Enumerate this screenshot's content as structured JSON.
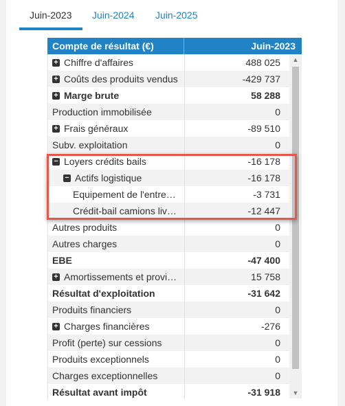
{
  "tabs": [
    {
      "label": "Juin-2023",
      "active": true
    },
    {
      "label": "Juin-2024",
      "active": false
    },
    {
      "label": "Juin-2025",
      "active": false
    }
  ],
  "table": {
    "header": {
      "label": "Compte de résultat (€)",
      "column": "Juin-2023"
    },
    "rows": [
      {
        "label": "Chiffre d'affaires",
        "value": "488 025",
        "toggle": "plus",
        "indent": 0,
        "bold": false
      },
      {
        "label": "Coûts des produits vendus",
        "value": "-429 737",
        "toggle": "plus",
        "indent": 0,
        "bold": false
      },
      {
        "label": "Marge brute",
        "value": "58 288",
        "toggle": "plus",
        "indent": 0,
        "bold": true
      },
      {
        "label": "Production immobilisée",
        "value": "0",
        "toggle": "",
        "indent": 0,
        "bold": false
      },
      {
        "label": "Frais généraux",
        "value": "-89 510",
        "toggle": "plus",
        "indent": 0,
        "bold": false
      },
      {
        "label": "Subv. exploitation",
        "value": "0",
        "toggle": "",
        "indent": 0,
        "bold": false
      },
      {
        "label": "Loyers crédits bails",
        "value": "-16 178",
        "toggle": "minus",
        "indent": 0,
        "bold": false
      },
      {
        "label": "Actifs logistique",
        "value": "-16 178",
        "toggle": "minus",
        "indent": 1,
        "bold": false
      },
      {
        "label": "Equipement de l'entre…",
        "value": "-3 731",
        "toggle": "",
        "indent": 2,
        "bold": false
      },
      {
        "label": "Crédit-bail camions liv…",
        "value": "-12 447",
        "toggle": "",
        "indent": 2,
        "bold": false
      },
      {
        "label": "Autres produits",
        "value": "0",
        "toggle": "",
        "indent": 0,
        "bold": false
      },
      {
        "label": "Autres charges",
        "value": "0",
        "toggle": "",
        "indent": 0,
        "bold": false
      },
      {
        "label": "EBE",
        "value": "-47 400",
        "toggle": "",
        "indent": 0,
        "bold": true
      },
      {
        "label": "Amortissements et provi…",
        "value": "15 758",
        "toggle": "plus",
        "indent": 0,
        "bold": false
      },
      {
        "label": "Résultat d'exploitation",
        "value": "-31 642",
        "toggle": "",
        "indent": 0,
        "bold": true
      },
      {
        "label": "Produits financiers",
        "value": "0",
        "toggle": "",
        "indent": 0,
        "bold": false
      },
      {
        "label": "Charges financières",
        "value": "-276",
        "toggle": "plus",
        "indent": 0,
        "bold": false
      },
      {
        "label": "Profit (perte) sur cessions",
        "value": "0",
        "toggle": "",
        "indent": 0,
        "bold": false
      },
      {
        "label": "Produits exceptionnels",
        "value": "0",
        "toggle": "",
        "indent": 0,
        "bold": false
      },
      {
        "label": "Charges exceptionnelles",
        "value": "0",
        "toggle": "",
        "indent": 0,
        "bold": false
      },
      {
        "label": "Résultat avant impôt",
        "value": "-31 918",
        "toggle": "",
        "indent": 0,
        "bold": true
      }
    ]
  },
  "colors": {
    "accent": "#1f83c6",
    "highlight": "#e8564a",
    "shaded_row": "#f2f2f2"
  },
  "icons": {
    "expand": "plus-square-icon",
    "collapse": "minus-square-icon"
  }
}
